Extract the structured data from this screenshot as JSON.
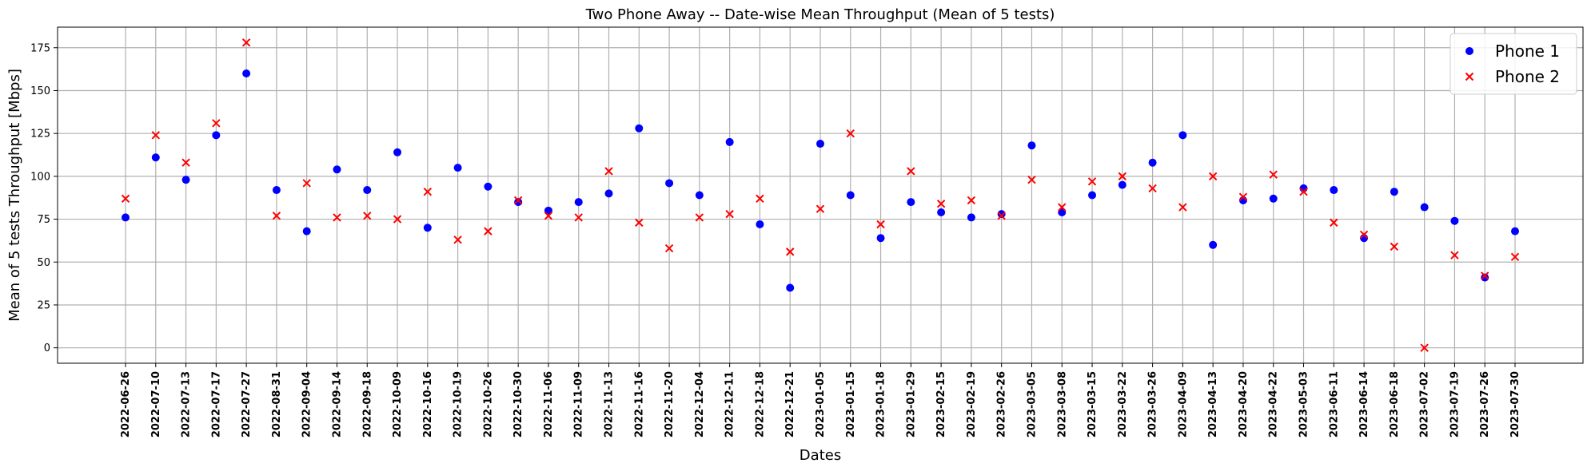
{
  "chart_data": {
    "type": "scatter",
    "title": "Two Phone Away -- Date-wise Mean Throughput (Mean of 5 tests)",
    "xlabel": "Dates",
    "ylabel": "Mean of 5 tests Throughput [Mbps]",
    "ylim": [
      -9,
      187
    ],
    "yticks": [
      0,
      25,
      50,
      75,
      100,
      125,
      150,
      175
    ],
    "grid": true,
    "legend_position": "top-right",
    "categories": [
      "2022-06-26",
      "2022-07-10",
      "2022-07-13",
      "2022-07-17",
      "2022-07-27",
      "2022-08-31",
      "2022-09-04",
      "2022-09-14",
      "2022-09-18",
      "2022-10-09",
      "2022-10-16",
      "2022-10-19",
      "2022-10-26",
      "2022-10-30",
      "2022-11-06",
      "2022-11-09",
      "2022-11-13",
      "2022-11-16",
      "2022-11-20",
      "2022-12-04",
      "2022-12-11",
      "2022-12-18",
      "2022-12-21",
      "2023-01-05",
      "2023-01-15",
      "2023-01-18",
      "2023-01-29",
      "2023-02-15",
      "2023-02-19",
      "2023-02-26",
      "2023-03-05",
      "2023-03-08",
      "2023-03-15",
      "2023-03-22",
      "2023-03-26",
      "2023-04-09",
      "2023-04-13",
      "2023-04-20",
      "2023-04-22",
      "2023-05-03",
      "2023-06-11",
      "2023-06-14",
      "2023-06-18",
      "2023-07-02",
      "2023-07-19",
      "2023-07-26",
      "2023-07-30"
    ],
    "series": [
      {
        "name": "Phone 1",
        "marker": "circle",
        "color": "#0000ff",
        "values": [
          76,
          111,
          98,
          124,
          160,
          92,
          68,
          104,
          92,
          114,
          70,
          105,
          94,
          85,
          80,
          85,
          90,
          128,
          96,
          89,
          120,
          72,
          35,
          119,
          89,
          64,
          85,
          79,
          76,
          78,
          118,
          79,
          89,
          95,
          108,
          124,
          60,
          86,
          87,
          93,
          92,
          64,
          91,
          82,
          74,
          41,
          68
        ]
      },
      {
        "name": "Phone 2",
        "marker": "x",
        "color": "#ff0000",
        "values": [
          87,
          124,
          108,
          131,
          178,
          77,
          96,
          76,
          77,
          75,
          91,
          63,
          68,
          86,
          77,
          76,
          103,
          73,
          58,
          76,
          78,
          87,
          56,
          81,
          125,
          72,
          103,
          84,
          86,
          77,
          98,
          82,
          97,
          100,
          93,
          82,
          100,
          88,
          101,
          91,
          73,
          66,
          59,
          0,
          54,
          42,
          53
        ]
      }
    ]
  }
}
